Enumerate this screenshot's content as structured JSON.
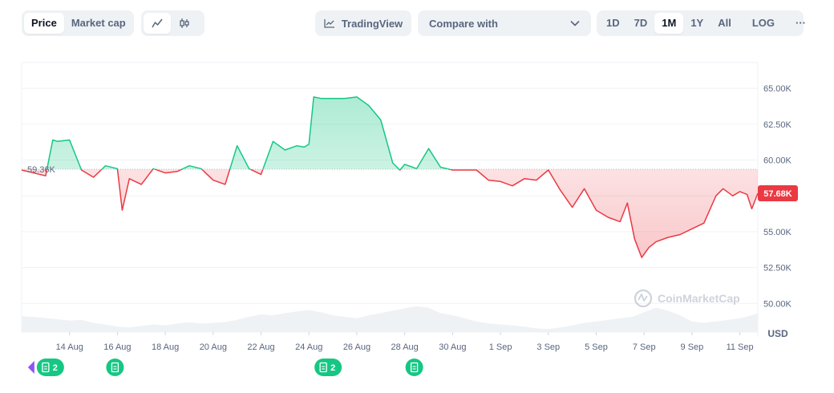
{
  "toolbar": {
    "price_tab": "Price",
    "market_cap_tab": "Market cap",
    "line_icon": "line-chart-icon",
    "candle_icon": "candlestick-icon",
    "tradingview_label": "TradingView",
    "compare_label": "Compare with",
    "ranges": [
      "1D",
      "7D",
      "1M",
      "1Y",
      "All"
    ],
    "active_range": "1M",
    "log_label": "LOG",
    "more_label": "···"
  },
  "chart": {
    "reference_label": "59.36K",
    "current_label": "57.68K",
    "currency_label": "USD",
    "watermark": "CoinMarketCap",
    "colors": {
      "up": "#16c784",
      "down": "#ea3943",
      "current_badge": "#ea3943"
    }
  },
  "events": [
    {
      "date": "13 Aug",
      "count": "2",
      "icon": "document-icon",
      "has_arrow": true
    },
    {
      "date": "16 Aug",
      "count": "",
      "icon": "document-icon",
      "has_arrow": false
    },
    {
      "date": "25 Aug",
      "count": "2",
      "icon": "document-icon",
      "has_arrow": false
    },
    {
      "date": "29 Aug",
      "count": "",
      "icon": "document-icon",
      "has_arrow": false
    }
  ],
  "chart_data": {
    "type": "line",
    "reference_value": 59360,
    "last_value": 57680,
    "ylim": [
      48000,
      66800
    ],
    "y_ticks": [
      "65.00K",
      "62.50K",
      "60.00K",
      "57.50K",
      "55.00K",
      "52.50K",
      "50.00K"
    ],
    "y_tick_values": [
      65000,
      62500,
      60000,
      57500,
      55000,
      52500,
      50000
    ],
    "x_tick_labels": [
      "14 Aug",
      "16 Aug",
      "18 Aug",
      "20 Aug",
      "22 Aug",
      "24 Aug",
      "26 Aug",
      "28 Aug",
      "30 Aug",
      "1 Sep",
      "3 Sep",
      "5 Sep",
      "7 Sep",
      "9 Sep",
      "11 Sep"
    ],
    "x_tick_days": [
      2,
      4,
      6,
      8,
      10,
      12,
      14,
      16,
      18,
      20,
      22,
      24,
      26,
      28,
      30
    ],
    "x_range_days": [
      0,
      30.75
    ],
    "series": [
      {
        "x": [
          0,
          1,
          1.3,
          1.5,
          2.0,
          2.5,
          3.0,
          3.5,
          4.0,
          4.2,
          4.5,
          5.0,
          5.5,
          6.0,
          6.5,
          7.0,
          7.5,
          8.0,
          8.5,
          9.0,
          9.5,
          10.0,
          10.5,
          11.0,
          11.5,
          11.8,
          12.0,
          12.2,
          12.5,
          13.0,
          13.5,
          14.0,
          14.5,
          15.0,
          15.5,
          15.8,
          16.0,
          16.5,
          17.0,
          17.5,
          18.0,
          18.5,
          19.0,
          19.5,
          20.0,
          20.5,
          21.0,
          21.5,
          22.0,
          22.5,
          23.0,
          23.5,
          24.0,
          24.5,
          25.0,
          25.3,
          25.6,
          25.9,
          26.2,
          26.5,
          27.0,
          27.5,
          28.0,
          28.5,
          29.0,
          29.3,
          29.7,
          30.0,
          30.3,
          30.5,
          30.75
        ],
        "y": [
          59300,
          58900,
          61400,
          61300,
          61400,
          59300,
          58800,
          59600,
          59400,
          56500,
          58700,
          58300,
          59400,
          59100,
          59200,
          59600,
          59400,
          58600,
          58300,
          61000,
          59400,
          59000,
          61300,
          60700,
          61000,
          60900,
          61100,
          64400,
          64300,
          64300,
          64300,
          64400,
          63800,
          62800,
          59800,
          59300,
          59700,
          59400,
          60800,
          59500,
          59300,
          59300,
          59300,
          58600,
          58500,
          58200,
          58700,
          58600,
          59300,
          57900,
          56700,
          58000,
          56500,
          56000,
          55700,
          57000,
          54500,
          53200,
          53900,
          54300,
          54600,
          54800,
          55200,
          55600,
          57500,
          58000,
          57500,
          57800,
          57600,
          56600,
          57680
        ]
      }
    ],
    "volume_day_step": 0.5,
    "volume": [
      0.52,
      0.5,
      0.46,
      0.42,
      0.38,
      0.4,
      0.3,
      0.25,
      0.18,
      0.15,
      0.2,
      0.25,
      0.22,
      0.28,
      0.32,
      0.28,
      0.3,
      0.33,
      0.4,
      0.5,
      0.58,
      0.55,
      0.62,
      0.68,
      0.72,
      0.65,
      0.55,
      0.5,
      0.45,
      0.55,
      0.62,
      0.7,
      0.78,
      0.85,
      0.8,
      0.62,
      0.55,
      0.45,
      0.35,
      0.28,
      0.25,
      0.22,
      0.18,
      0.12,
      0.1,
      0.15,
      0.22,
      0.3,
      0.35,
      0.4,
      0.45,
      0.5,
      0.65,
      0.8,
      0.7,
      0.55,
      0.35,
      0.3,
      0.35,
      0.4,
      0.45,
      0.55,
      0.62
    ]
  }
}
